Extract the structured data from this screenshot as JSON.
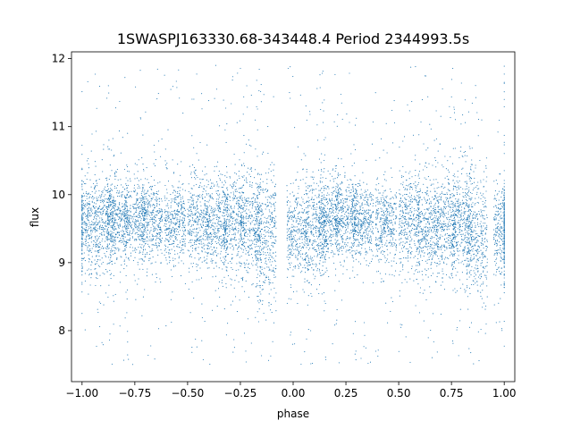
{
  "chart_data": {
    "type": "scatter",
    "title": "1SWASPJ163330.68-343448.4 Period 2344993.5s",
    "xlabel": "phase",
    "ylabel": "flux",
    "xlim": [
      -1.05,
      1.05
    ],
    "ylim": [
      7.25,
      12.1
    ],
    "xticks": [
      -1.0,
      -0.75,
      -0.5,
      -0.25,
      0.0,
      0.25,
      0.5,
      0.75,
      1.0
    ],
    "xtick_labels": [
      "−1.00",
      "−0.75",
      "−0.50",
      "−0.25",
      "0.00",
      "0.25",
      "0.50",
      "0.75",
      "1.00"
    ],
    "yticks": [
      8,
      9,
      10,
      11,
      12
    ],
    "ytick_labels": [
      "8",
      "9",
      "10",
      "11",
      "12"
    ],
    "marker_color": "#1f77b4",
    "grid": false,
    "series": [
      {
        "x_range": [
          -1.0,
          1.0
        ],
        "approx_points": 9000,
        "bulk_center_flux": 9.6,
        "bulk_spread_flux": [
          9.0,
          10.2
        ],
        "outlier_range_flux": [
          7.5,
          11.9
        ],
        "sparse_gaps_phase": [
          [
            -0.02,
            0.02
          ],
          [
            0.98,
            1.0
          ]
        ],
        "clusters": [
          {
            "x": -0.98,
            "center": 9.55,
            "spread": 0.35
          },
          {
            "x": -0.89,
            "center": 9.5,
            "spread": 0.4
          },
          {
            "x": -0.83,
            "center": 9.65,
            "spread": 0.3
          },
          {
            "x": -0.75,
            "center": 9.65,
            "spread": 0.3
          },
          {
            "x": -0.67,
            "center": 9.6,
            "spread": 0.3
          },
          {
            "x": -0.56,
            "center": 9.6,
            "spread": 0.3
          },
          {
            "x": -0.45,
            "center": 9.6,
            "spread": 0.35
          },
          {
            "x": -0.36,
            "center": 9.55,
            "spread": 0.35
          },
          {
            "x": -0.28,
            "center": 9.6,
            "spread": 0.35
          },
          {
            "x": -0.2,
            "center": 9.55,
            "spread": 0.4
          },
          {
            "x": -0.13,
            "center": 9.4,
            "spread": 0.5
          },
          {
            "x": 0.02,
            "center": 9.5,
            "spread": 0.35
          },
          {
            "x": 0.11,
            "center": 9.5,
            "spread": 0.4
          },
          {
            "x": 0.17,
            "center": 9.65,
            "spread": 0.3
          },
          {
            "x": 0.25,
            "center": 9.65,
            "spread": 0.3
          },
          {
            "x": 0.33,
            "center": 9.6,
            "spread": 0.3
          },
          {
            "x": 0.44,
            "center": 9.6,
            "spread": 0.3
          },
          {
            "x": 0.55,
            "center": 9.6,
            "spread": 0.35
          },
          {
            "x": 0.64,
            "center": 9.55,
            "spread": 0.35
          },
          {
            "x": 0.72,
            "center": 9.6,
            "spread": 0.35
          },
          {
            "x": 0.8,
            "center": 9.55,
            "spread": 0.4
          },
          {
            "x": 0.87,
            "center": 9.4,
            "spread": 0.5
          },
          {
            "x": 1.0,
            "center": 9.5,
            "spread": 0.35
          }
        ]
      }
    ]
  }
}
